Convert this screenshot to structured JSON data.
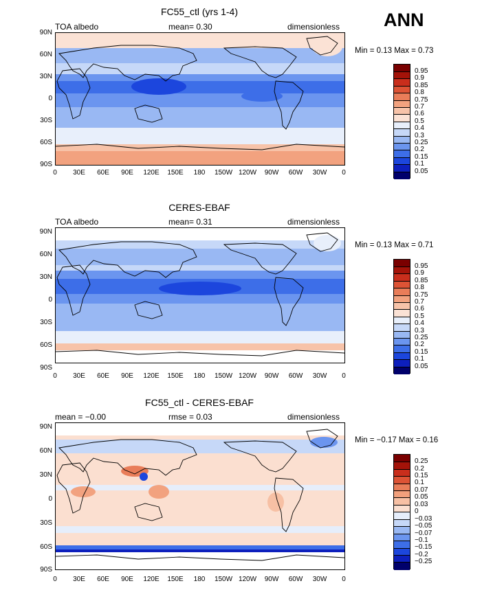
{
  "season": "ANN",
  "panels": [
    {
      "title": "FC55_ctl (yrs 1-4)",
      "left_label": "TOA albedo",
      "center_label": "mean=    0.30",
      "right_label": "dimensionless",
      "minmax": "Min =    0.13 Max =    0.73",
      "colorbar_labels": [
        "0.95",
        "0.9",
        "0.85",
        "0.8",
        "0.75",
        "0.7",
        "0.6",
        "0.5",
        "0.4",
        "0.3",
        "0.25",
        "0.2",
        "0.15",
        "0.1",
        "0.05"
      ]
    },
    {
      "title": "CERES-EBAF",
      "left_label": "TOA albedo",
      "center_label": "mean=    0.31",
      "right_label": "dimensionless",
      "minmax": "Min =    0.13 Max =    0.71",
      "colorbar_labels": [
        "0.95",
        "0.9",
        "0.85",
        "0.8",
        "0.75",
        "0.7",
        "0.6",
        "0.5",
        "0.4",
        "0.3",
        "0.25",
        "0.2",
        "0.15",
        "0.1",
        "0.05"
      ]
    },
    {
      "title": "FC55_ctl - CERES-EBAF",
      "left_label": "mean =   −0.00",
      "center_label": "rmse =     0.03",
      "right_label": "dimensionless",
      "minmax": "Min =  −0.17 Max =    0.16",
      "colorbar_labels": [
        "0.25",
        "0.2",
        "0.15",
        "0.1",
        "0.07",
        "0.05",
        "0.03",
        "0",
        "−0.03",
        "−0.05",
        "−0.07",
        "−0.1",
        "−0.15",
        "−0.2",
        "−0.25"
      ]
    }
  ],
  "lat_ticks": [
    "90N",
    "60N",
    "30N",
    "0",
    "30S",
    "60S",
    "90S"
  ],
  "lon_ticks": [
    "0",
    "30E",
    "60E",
    "90E",
    "120E",
    "150E",
    "180",
    "150W",
    "120W",
    "90W",
    "60W",
    "30W",
    "0"
  ],
  "colors": {
    "field_ramp": [
      "#00006b",
      "#0d1fbd",
      "#1c46dd",
      "#3d6ee8",
      "#6b95ef",
      "#99b8f3",
      "#c6d8f8",
      "#e8effb",
      "#fbe2d5",
      "#f7c3a9",
      "#f2a27f",
      "#e97d59",
      "#dd5335",
      "#c92e1c",
      "#a41309",
      "#7a0000"
    ],
    "diff_ramp": [
      "#00006b",
      "#0d1fbd",
      "#1c46dd",
      "#3d6ee8",
      "#6b95ef",
      "#99b8f3",
      "#c6d8f8",
      "#e6eefb",
      "#fbdfd0",
      "#f7c0a4",
      "#f2a07c",
      "#e97d59",
      "#dd5335",
      "#c92e1c",
      "#a41309",
      "#7a0000"
    ]
  }
}
